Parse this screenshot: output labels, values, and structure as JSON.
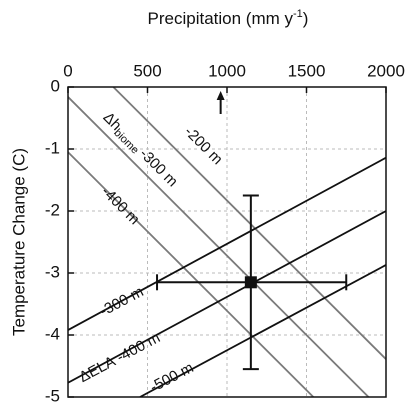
{
  "chart_data": {
    "type": "line",
    "x_label": {
      "main": "Precipitation (mm y",
      "sup": "-1",
      "end": ")"
    },
    "y_label": "Temperature Change (C)",
    "xlim": [
      0,
      2000
    ],
    "xticks": [
      0,
      500,
      1000,
      1500,
      2000
    ],
    "ylim": [
      -5,
      0
    ],
    "yticks": [
      0,
      -1,
      -2,
      -3,
      -4,
      -5
    ],
    "grid": true,
    "groups": {
      "biome": {
        "prefix": "Δh",
        "sub": "biome",
        "color": "#7a7a7a"
      },
      "ela": {
        "prefix": "ΔELA",
        "color": "#111111"
      }
    },
    "series": [
      {
        "name": "-200 m",
        "group": "biome",
        "x": [
          285,
          2000
        ],
        "values": [
          0,
          -4.39
        ]
      },
      {
        "name": "-300 m",
        "group": "biome",
        "x": [
          0,
          1890
        ],
        "values": [
          -0.16,
          -5
        ]
      },
      {
        "name": "-400 m",
        "group": "biome",
        "x": [
          0,
          1543
        ],
        "values": [
          -1.05,
          -5
        ]
      },
      {
        "name": "-300 m",
        "group": "ela",
        "x": [
          0,
          2000
        ],
        "values": [
          -3.92,
          -1.14
        ]
      },
      {
        "name": "-400 m",
        "group": "ela",
        "x": [
          0,
          2000
        ],
        "values": [
          -4.77,
          -2.0
        ]
      },
      {
        "name": "-500 m",
        "group": "ela",
        "x": [
          453,
          2000
        ],
        "values": [
          -5,
          -2.87
        ]
      }
    ],
    "point": {
      "x": 1150,
      "y": -3.15,
      "x_low": 560,
      "x_high": 1750,
      "y_low": -4.55,
      "y_high": -1.75
    },
    "arrow_x": 960
  }
}
